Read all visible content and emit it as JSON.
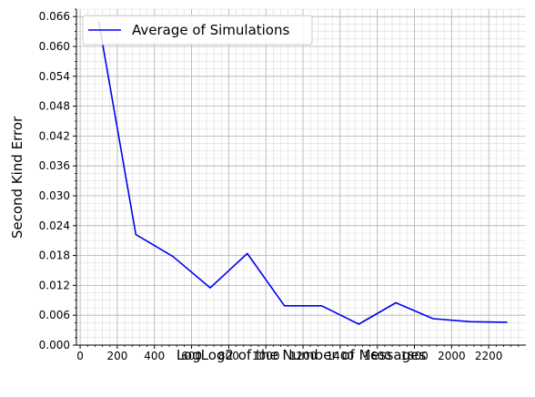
{
  "chart_data": {
    "type": "line",
    "title": "",
    "xlabel": "LogLog2 of the Number of Messages",
    "ylabel": "Second Kind Error",
    "xlim": [
      -20,
      2400
    ],
    "ylim": [
      0,
      0.0675
    ],
    "xticks": [
      0,
      200,
      400,
      600,
      800,
      1000,
      1200,
      1400,
      1600,
      1800,
      2000,
      2200
    ],
    "yticks": [
      0.0,
      0.006,
      0.012,
      0.018,
      0.024,
      0.03,
      0.036,
      0.042,
      0.048,
      0.054,
      0.06,
      0.066
    ],
    "grid": true,
    "minor_grid": true,
    "legend_position": "top-left",
    "series": [
      {
        "name": "Average of Simulations",
        "color": "#0000ee",
        "x": [
          100,
          300,
          500,
          700,
          900,
          1100,
          1300,
          1500,
          1700,
          1900,
          2100,
          2300
        ],
        "y": [
          0.065,
          0.0222,
          0.0178,
          0.0115,
          0.0184,
          0.0079,
          0.0079,
          0.0042,
          0.0085,
          0.0053,
          0.0047,
          0.0046
        ]
      }
    ]
  },
  "colors": {
    "major_grid": "#b0b0b0",
    "minor_grid": "#dddddd",
    "axis": "#000000"
  }
}
